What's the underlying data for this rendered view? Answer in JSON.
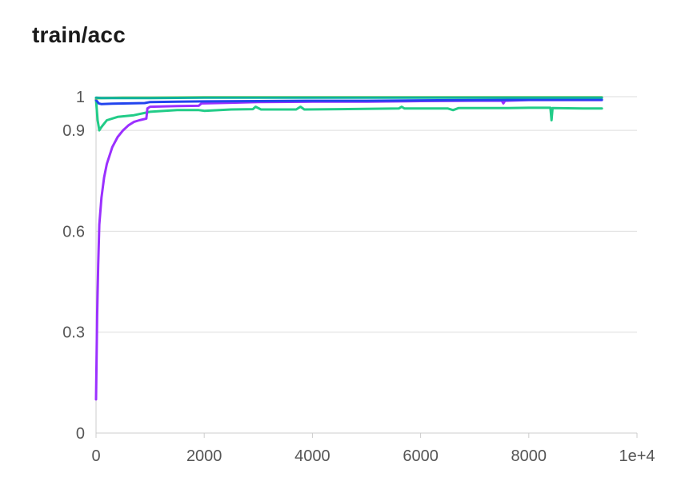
{
  "title": "train/acc",
  "chart_data": {
    "type": "line",
    "title": "train/acc",
    "xlabel": "",
    "ylabel": "",
    "x_scale_label": "1e+4",
    "xlim": [
      0,
      10000
    ],
    "ylim": [
      0,
      1
    ],
    "x_ticks": [
      0,
      2000,
      4000,
      6000,
      8000
    ],
    "x_tick_labels": [
      "0",
      "2000",
      "4000",
      "6000",
      "8000"
    ],
    "y_ticks": [
      0,
      0.3,
      0.6,
      0.9,
      1
    ],
    "y_tick_labels": [
      "0",
      "0.3",
      "0.6",
      "0.9",
      "1"
    ],
    "grid": true,
    "legend": "none",
    "series": [
      {
        "color": "#22cc88",
        "points": [
          [
            0,
            0.99
          ],
          [
            30,
            0.93
          ],
          [
            60,
            0.9
          ],
          [
            100,
            0.91
          ],
          [
            200,
            0.93
          ],
          [
            400,
            0.94
          ],
          [
            700,
            0.945
          ],
          [
            1000,
            0.955
          ],
          [
            1500,
            0.96
          ],
          [
            1900,
            0.96
          ],
          [
            2000,
            0.958
          ],
          [
            2500,
            0.962
          ],
          [
            2900,
            0.963
          ],
          [
            2950,
            0.97
          ],
          [
            3050,
            0.962
          ],
          [
            3700,
            0.962
          ],
          [
            3780,
            0.97
          ],
          [
            3850,
            0.962
          ],
          [
            4500,
            0.963
          ],
          [
            5600,
            0.965
          ],
          [
            5650,
            0.97
          ],
          [
            5700,
            0.965
          ],
          [
            6500,
            0.965
          ],
          [
            6600,
            0.96
          ],
          [
            6700,
            0.966
          ],
          [
            7500,
            0.966
          ],
          [
            8000,
            0.967
          ],
          [
            8400,
            0.967
          ],
          [
            8420,
            0.93
          ],
          [
            8440,
            0.966
          ],
          [
            9000,
            0.965
          ],
          [
            9350,
            0.965
          ]
        ]
      },
      {
        "color": "#9b30ff",
        "points": [
          [
            0,
            0.1
          ],
          [
            20,
            0.35
          ],
          [
            40,
            0.5
          ],
          [
            60,
            0.62
          ],
          [
            100,
            0.7
          ],
          [
            150,
            0.76
          ],
          [
            200,
            0.8
          ],
          [
            300,
            0.85
          ],
          [
            400,
            0.88
          ],
          [
            500,
            0.9
          ],
          [
            600,
            0.915
          ],
          [
            700,
            0.925
          ],
          [
            800,
            0.93
          ],
          [
            930,
            0.935
          ],
          [
            950,
            0.965
          ],
          [
            1000,
            0.97
          ],
          [
            1500,
            0.972
          ],
          [
            1900,
            0.973
          ],
          [
            1950,
            0.98
          ],
          [
            2500,
            0.982
          ],
          [
            3000,
            0.984
          ],
          [
            4000,
            0.985
          ],
          [
            5000,
            0.985
          ],
          [
            6000,
            0.987
          ],
          [
            7000,
            0.988
          ],
          [
            7500,
            0.988
          ],
          [
            7530,
            0.98
          ],
          [
            7560,
            0.988
          ],
          [
            8000,
            0.99
          ],
          [
            9350,
            0.99
          ]
        ]
      },
      {
        "color": "#2244ee",
        "points": [
          [
            0,
            0.99
          ],
          [
            50,
            0.98
          ],
          [
            100,
            0.978
          ],
          [
            300,
            0.979
          ],
          [
            600,
            0.98
          ],
          [
            900,
            0.981
          ],
          [
            1000,
            0.984
          ],
          [
            1500,
            0.985
          ],
          [
            2000,
            0.986
          ],
          [
            3000,
            0.987
          ],
          [
            4000,
            0.988
          ],
          [
            5000,
            0.988
          ],
          [
            6000,
            0.989
          ],
          [
            7000,
            0.99
          ],
          [
            8000,
            0.991
          ],
          [
            9350,
            0.991
          ]
        ]
      },
      {
        "color": "#7fd63a",
        "points": [
          [
            0,
            0.995
          ],
          [
            100,
            0.996
          ],
          [
            500,
            0.997
          ],
          [
            1000,
            0.997
          ],
          [
            2000,
            0.998
          ],
          [
            3000,
            0.998
          ],
          [
            4000,
            0.998
          ],
          [
            5000,
            0.998
          ],
          [
            6000,
            0.998
          ],
          [
            7000,
            0.998
          ],
          [
            8000,
            0.998
          ],
          [
            9350,
            0.998
          ]
        ]
      },
      {
        "color": "#10b0a0",
        "points": [
          [
            0,
            0.997
          ],
          [
            100,
            0.996
          ],
          [
            500,
            0.996
          ],
          [
            1000,
            0.996
          ],
          [
            2000,
            0.997
          ],
          [
            3000,
            0.997
          ],
          [
            4000,
            0.997
          ],
          [
            5000,
            0.997
          ],
          [
            6000,
            0.997
          ],
          [
            7000,
            0.997
          ],
          [
            8000,
            0.997
          ],
          [
            9350,
            0.997
          ]
        ]
      }
    ]
  }
}
